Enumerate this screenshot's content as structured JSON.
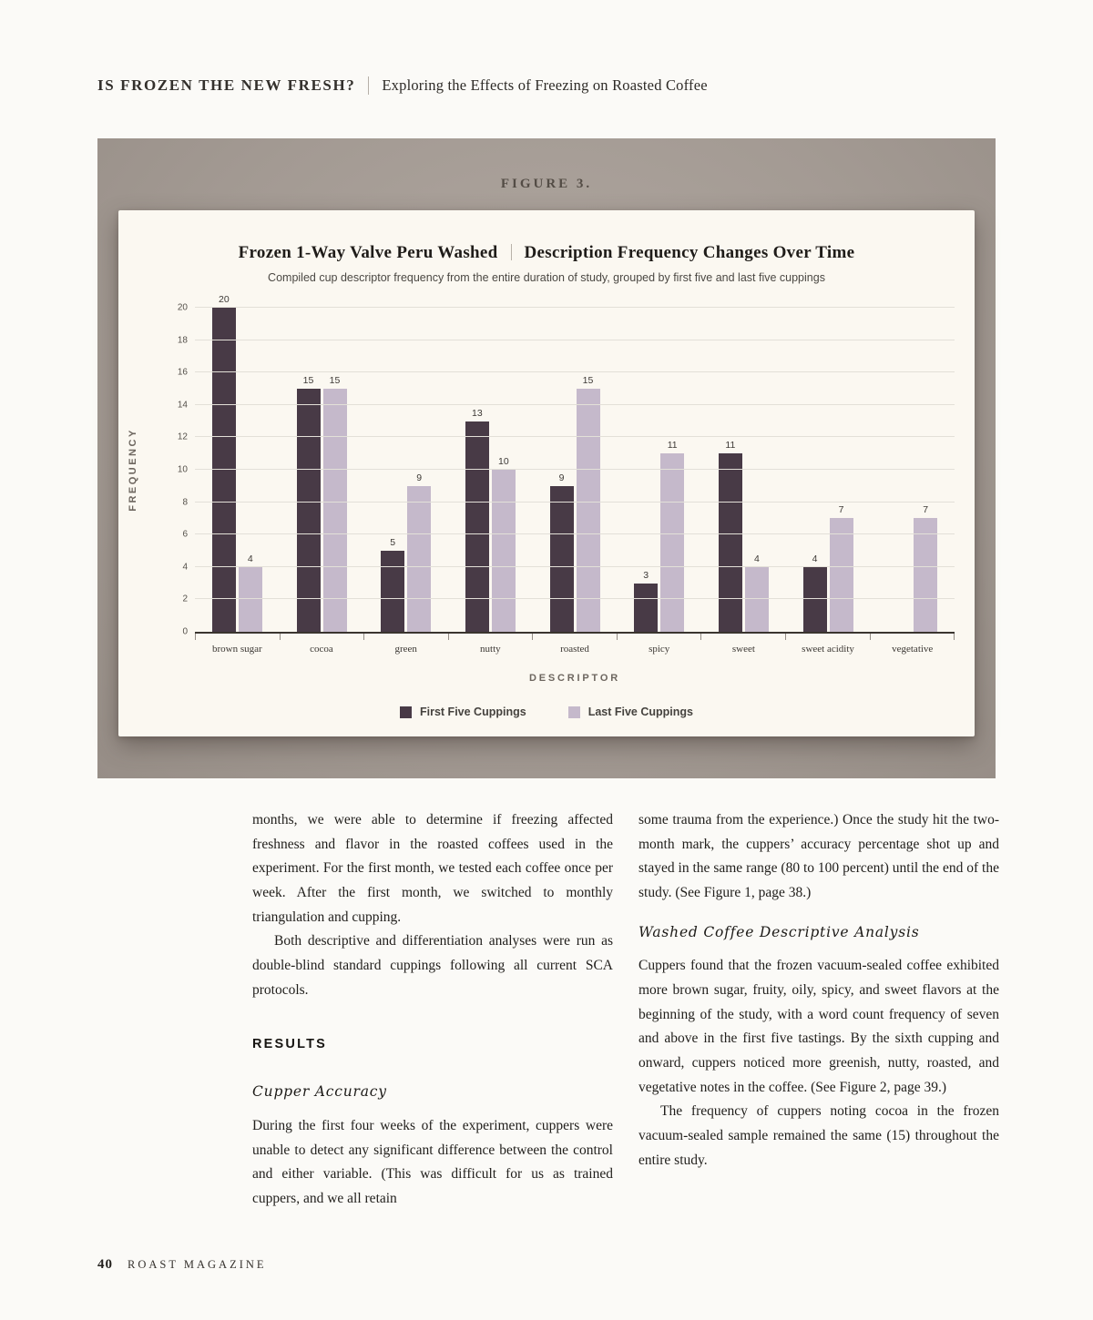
{
  "header": {
    "title": "IS FROZEN THE NEW FRESH?",
    "subtitle": "Exploring the Effects of Freezing on Roasted Coffee"
  },
  "figure": {
    "label": "FIGURE 3.",
    "title_left": "Frozen 1-Way Valve Peru Washed",
    "title_right": "Description Frequency Changes Over Time",
    "subtitle": "Compiled cup descriptor frequency from the entire duration of study, grouped by first five and last five cuppings"
  },
  "chart_data": {
    "type": "bar",
    "title": "Frozen 1-Way Valve Peru Washed | Description Frequency Changes Over Time",
    "subtitle": "Compiled cup descriptor frequency from the entire duration of study, grouped by first five and last five cuppings",
    "categories": [
      "brown sugar",
      "cocoa",
      "green",
      "nutty",
      "roasted",
      "spicy",
      "sweet",
      "sweet acidity",
      "vegetative"
    ],
    "series": [
      {
        "name": "First Five Cuppings",
        "color": "#483a46",
        "values": [
          20,
          15,
          5,
          13,
          9,
          3,
          11,
          4,
          0
        ]
      },
      {
        "name": "Last Five Cuppings",
        "color": "#c5b9cb",
        "values": [
          4,
          15,
          9,
          10,
          15,
          11,
          4,
          7,
          7
        ]
      }
    ],
    "xlabel": "DESCRIPTOR",
    "ylabel": "FREQUENCY",
    "ylim": [
      0,
      20
    ],
    "ytick_step": 2,
    "grid": true,
    "legend_position": "bottom"
  },
  "body": {
    "left": {
      "para1": "months, we were able to determine if freezing affected freshness and flavor in the roasted coffees used in the experiment. For the first month, we tested each coffee once per week. After the first month, we switched to monthly triangulation and cupping.",
      "para2": "Both descriptive and differentiation analyses were run as double-blind standard cuppings following all current SCA protocols.",
      "results_heading": "RESULTS",
      "subhead": "Cupper Accuracy",
      "para3": "During the first four weeks of the experiment, cuppers were unable to detect any significant difference between the control and either variable. (This was difficult for us as trained cuppers, and we all retain"
    },
    "right": {
      "para1": "some trauma from the experience.) Once the study hit the two-month mark, the cuppers’ accuracy percentage shot up and stayed in the same range (80 to 100 percent) until the end of the study. (See Figure 1, page 38.)",
      "subhead": "Washed Coffee Descriptive Analysis",
      "para2": "Cuppers found that the frozen vacuum-sealed coffee exhibited more brown sugar, fruity, oily, spicy, and sweet flavors at the beginning of the study, with a word count frequency of seven and above in the first five tastings. By the sixth cupping and onward, cuppers noticed more greenish, nutty, roasted, and vegetative notes in the coffee. (See Figure 2, page 39.)",
      "para3": "The frequency of cuppers noting cocoa in the frozen vacuum-sealed sample remained the same (15) throughout the entire study."
    }
  },
  "footer": {
    "page_number": "40",
    "magazine": "ROAST MAGAZINE"
  }
}
